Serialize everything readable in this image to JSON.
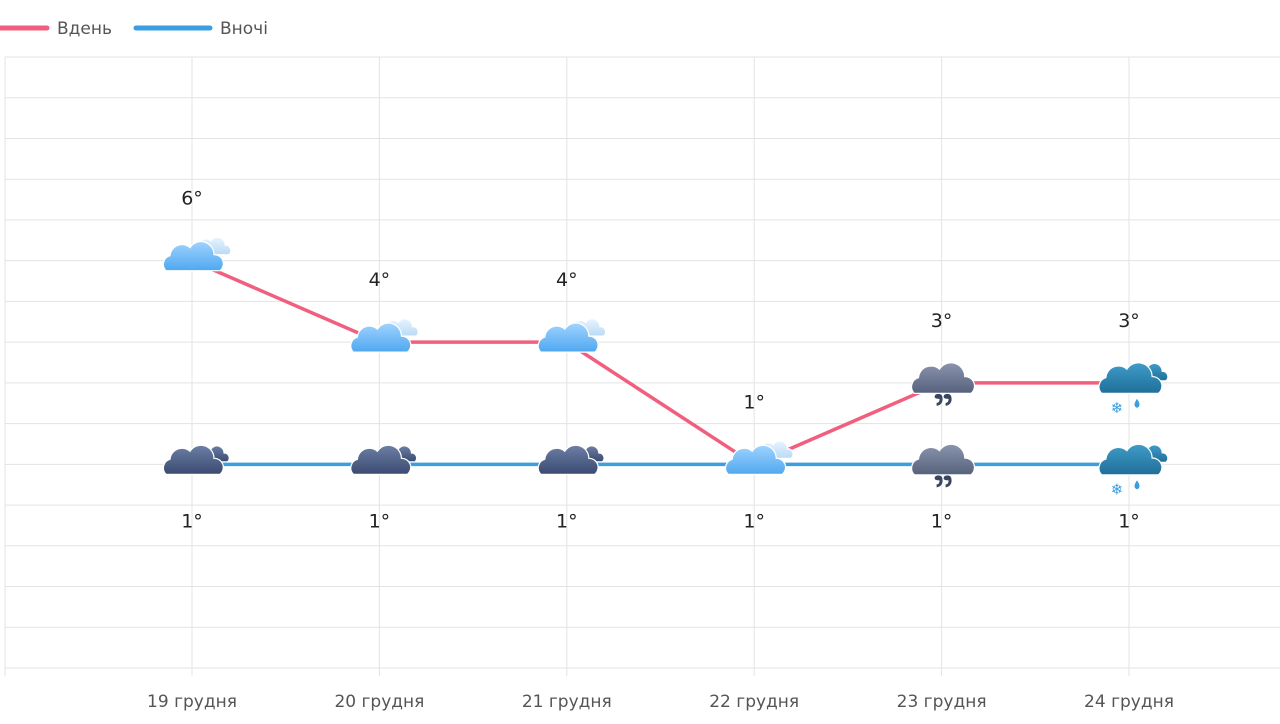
{
  "chart_data": {
    "type": "line",
    "categories": [
      "19 грудня",
      "20 грудня",
      "21 грудня",
      "22 грудня",
      "23 грудня",
      "24 грудня"
    ],
    "series": [
      {
        "name": "Вдень",
        "color": "#f0607e",
        "values": [
          6,
          4,
          4,
          1,
          3,
          3
        ],
        "labels": [
          "6°",
          "4°",
          "4°",
          "1°",
          "3°",
          "3°"
        ],
        "icons": [
          "cloudy-day-icon",
          "cloudy-day-icon",
          "cloudy-day-icon",
          "cloudy-day-icon",
          "rain-cloud-icon",
          "sleet-cloud-icon"
        ]
      },
      {
        "name": "Вночі",
        "color": "#3a9ee0",
        "values": [
          1,
          1,
          1,
          1,
          1,
          1
        ],
        "labels": [
          "1°",
          "1°",
          "1°",
          "1°",
          "1°",
          "1°"
        ],
        "icons": [
          "cloudy-night-icon",
          "cloudy-night-icon",
          "cloudy-night-icon",
          "cloudy-day-icon",
          "rain-cloud-icon",
          "sleet-cloud-icon"
        ]
      }
    ],
    "ylim": [
      -4,
      11
    ],
    "grid": true,
    "legend": "top-left"
  }
}
